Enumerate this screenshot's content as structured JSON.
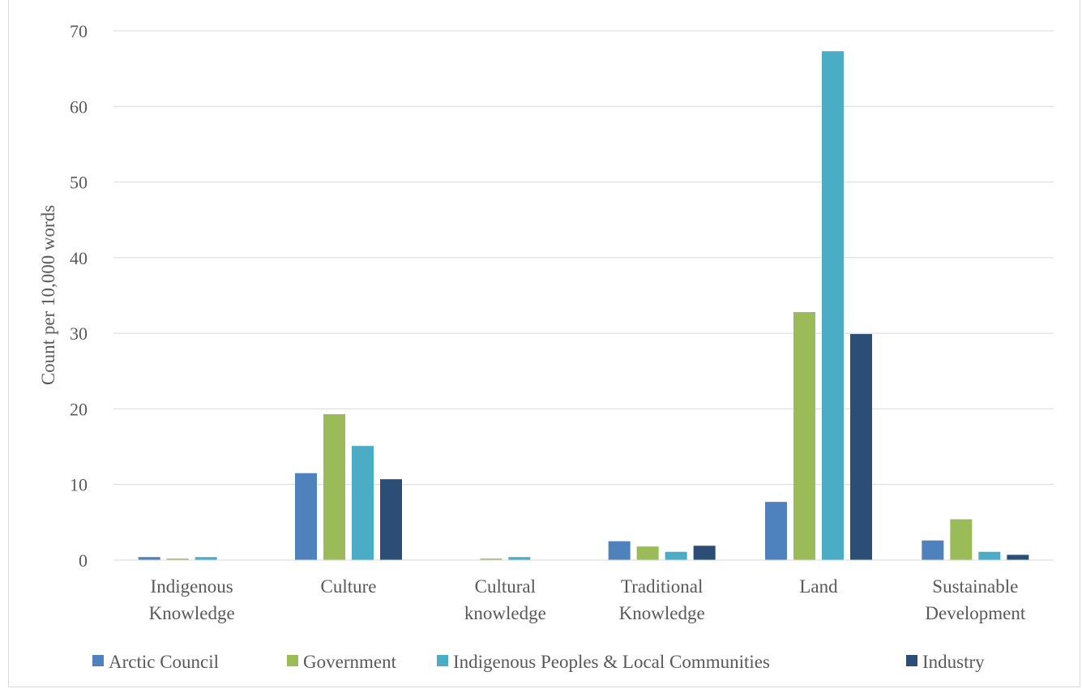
{
  "chart_data": {
    "type": "bar",
    "title": "",
    "xlabel": "",
    "ylabel": "Count per 10,000 words",
    "ylim": [
      0,
      70
    ],
    "yticks": [
      0,
      10,
      20,
      30,
      40,
      50,
      60,
      70
    ],
    "grid": true,
    "legend_position": "bottom",
    "categories": [
      [
        "Indigenous",
        "Knowledge"
      ],
      [
        "Culture"
      ],
      [
        "Cultural",
        "knowledge"
      ],
      [
        "Traditional",
        "Knowledge"
      ],
      [
        "Land"
      ],
      [
        "Sustainable",
        "Development"
      ]
    ],
    "series": [
      {
        "name": "Arctic Council",
        "color": "#4F81BD",
        "values": [
          0.4,
          11.5,
          0,
          2.5,
          7.7,
          2.6
        ]
      },
      {
        "name": "Government",
        "color": "#9BBB59",
        "values": [
          0.2,
          19.3,
          0.2,
          1.8,
          32.8,
          5.4
        ]
      },
      {
        "name": "Indigenous Peoples & Local Communities",
        "color": "#4BACC6",
        "values": [
          0.4,
          15.1,
          0.4,
          1.1,
          67.3,
          1.1
        ]
      },
      {
        "name": "Industry",
        "color": "#2C4D75",
        "values": [
          0,
          10.7,
          0,
          1.9,
          29.9,
          0.7
        ]
      }
    ]
  }
}
